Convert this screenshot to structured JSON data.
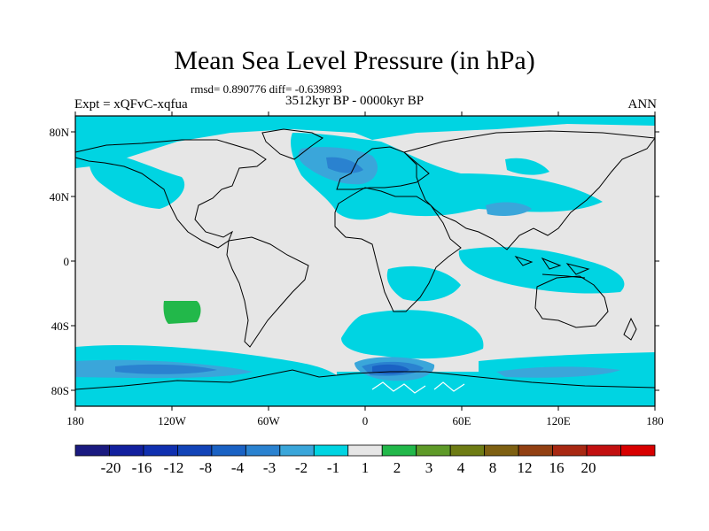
{
  "title": "Mean Sea Level Pressure (in hPa)",
  "stats": "rmsd= 0.890776 diff= -0.639893",
  "period": "3512kyr BP - 0000kyr BP",
  "experiment": "Expt = xQFvC-xqfua",
  "season": "ANN",
  "y_ticks": [
    "80N",
    "40N",
    "0",
    "40S",
    "80S"
  ],
  "x_ticks": [
    "180",
    "120W",
    "60W",
    "0",
    "60E",
    "120E",
    "180"
  ],
  "colorbar": {
    "labels": [
      "-20",
      "-16",
      "-12",
      "-8",
      "-4",
      "-3",
      "-2",
      "-1",
      "1",
      "2",
      "3",
      "4",
      "8",
      "12",
      "16",
      "20"
    ],
    "colors": [
      "#1a1a80",
      "#12209e",
      "#1030b0",
      "#1244b8",
      "#1a62c4",
      "#2a82d0",
      "#3aa6da",
      "#00d4e2",
      "#e6e6e6",
      "#22b84a",
      "#5e9a28",
      "#6e7c14",
      "#7e6012",
      "#924012",
      "#a82812",
      "#c21010",
      "#d80000"
    ]
  },
  "colors": {
    "land_outline": "#000000",
    "background_field": "#e6e6e6",
    "minus_1_to_minus_2": "#00d4e2",
    "minus_2_to_minus_3": "#3aa6da",
    "minus_3_to_minus_4": "#2a82d0",
    "minus_4_to_minus_8": "#1a62c4",
    "plus_1_to_plus_2": "#22b84a"
  }
}
